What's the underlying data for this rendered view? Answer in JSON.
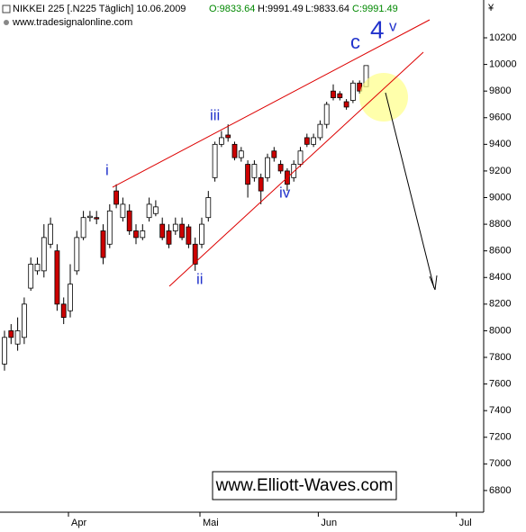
{
  "header": {
    "name": "NIKKEI 225 [.N225  Täglich] 10.06.2009",
    "ohlc": [
      "O:9833.64",
      "H:9991.49",
      "L:9833.64",
      "C:9991.49"
    ],
    "source": "www.tradesignalonline.com",
    "currency": "¥"
  },
  "annotations": {
    "wave_i": "i",
    "wave_ii": "ii",
    "wave_iii": "iii",
    "wave_iv": "iv",
    "wave_v": "v",
    "wave_c": "c",
    "wave_4": "4",
    "watermark": "www.Elliott-Waves.com"
  },
  "chart_data": {
    "type": "candlestick",
    "categories": [
      null,
      null,
      null,
      null,
      null,
      null,
      null,
      null,
      null,
      null,
      "Apr",
      null,
      null,
      null,
      null,
      null,
      null,
      null,
      null,
      null,
      null,
      null,
      null,
      null,
      null,
      null,
      null,
      null,
      null,
      null,
      "Mai",
      null,
      null,
      null,
      null,
      null,
      null,
      null,
      null,
      null,
      null,
      null,
      null,
      null,
      null,
      null,
      null,
      null,
      "Jun",
      null,
      null,
      null,
      null,
      null,
      null,
      null,
      null,
      null,
      null,
      null,
      null,
      null,
      null,
      null,
      null,
      null,
      null,
      null,
      null,
      "Jul",
      null,
      null,
      null
    ],
    "open": [
      7750,
      8000,
      7900,
      7950,
      8320,
      8450,
      8450,
      8650,
      8600,
      8200,
      8150,
      8450,
      8700,
      8850,
      8850,
      8750,
      8650,
      9050,
      8850,
      8900,
      8750,
      8700,
      8850,
      8880,
      8800,
      8750,
      8750,
      8800,
      8780,
      8650,
      8650,
      8850,
      9150,
      9400,
      9470,
      9400,
      9300,
      9250,
      9150,
      9150,
      9150,
      9350,
      9250,
      9200,
      9150,
      9250,
      9450,
      9400,
      9450,
      9550,
      9800,
      9780,
      9720,
      9730,
      9860,
      9833.64,
      null,
      null,
      null,
      null,
      null,
      null,
      null,
      null,
      null,
      null,
      null,
      null,
      null,
      null,
      null,
      null,
      null
    ],
    "high": [
      8000,
      8050,
      8100,
      8250,
      8550,
      8550,
      8800,
      8850,
      8650,
      8250,
      8500,
      8750,
      8900,
      8900,
      8900,
      8800,
      8950,
      9100,
      9000,
      8950,
      8800,
      8800,
      9000,
      8980,
      8850,
      8800,
      8850,
      8850,
      8800,
      8700,
      8850,
      9050,
      9420,
      9500,
      9550,
      9420,
      9380,
      9280,
      9280,
      9180,
      9330,
      9380,
      9280,
      9220,
      9280,
      9380,
      9480,
      9480,
      9580,
      9720,
      9850,
      9800,
      9740,
      9880,
      9880,
      9991.49,
      null,
      null,
      null,
      null,
      null,
      null,
      null,
      null,
      null,
      null,
      null,
      null,
      null,
      null,
      null,
      null,
      null
    ],
    "low": [
      7700,
      7900,
      7850,
      7900,
      8300,
      8420,
      8400,
      8620,
      8150,
      8050,
      8100,
      8420,
      8680,
      8820,
      8800,
      8500,
      8620,
      8920,
      8820,
      8720,
      8650,
      8680,
      8820,
      8860,
      8680,
      8620,
      8720,
      8680,
      8620,
      8450,
      8620,
      8820,
      9120,
      9380,
      9420,
      9280,
      9270,
      9000,
      9120,
      8950,
      9120,
      9270,
      9180,
      9050,
      9120,
      9230,
      9380,
      9380,
      9430,
      9520,
      9730,
      9730,
      9660,
      9710,
      9780,
      9833.64,
      null,
      null,
      null,
      null,
      null,
      null,
      null,
      null,
      null,
      null,
      null,
      null,
      null,
      null,
      null,
      null,
      null
    ],
    "close": [
      7950,
      7950,
      8000,
      8200,
      8500,
      8500,
      8700,
      8800,
      8200,
      8100,
      8350,
      8700,
      8850,
      8860,
      8840,
      8550,
      8900,
      8950,
      8950,
      8750,
      8700,
      8750,
      8950,
      8930,
      8700,
      8650,
      8800,
      8700,
      8650,
      8500,
      8800,
      9000,
      9400,
      9450,
      9450,
      9300,
      9350,
      9100,
      9250,
      9050,
      9300,
      9300,
      9200,
      9100,
      9250,
      9350,
      9400,
      9450,
      9550,
      9700,
      9750,
      9750,
      9680,
      9860,
      9800,
      9991.49,
      null,
      null,
      null,
      null,
      null,
      null,
      null,
      null,
      null,
      null,
      null,
      null,
      null,
      null,
      null,
      null,
      null
    ],
    "colors": {
      "up": "#ffffff",
      "down": "#cc0000"
    },
    "ylim": [
      6644,
      10484
    ],
    "yticks": [
      6800,
      7000,
      7200,
      7400,
      7600,
      7800,
      8000,
      8200,
      8400,
      8600,
      8800,
      9000,
      9200,
      9400,
      9600,
      9800,
      10000,
      10200
    ]
  }
}
